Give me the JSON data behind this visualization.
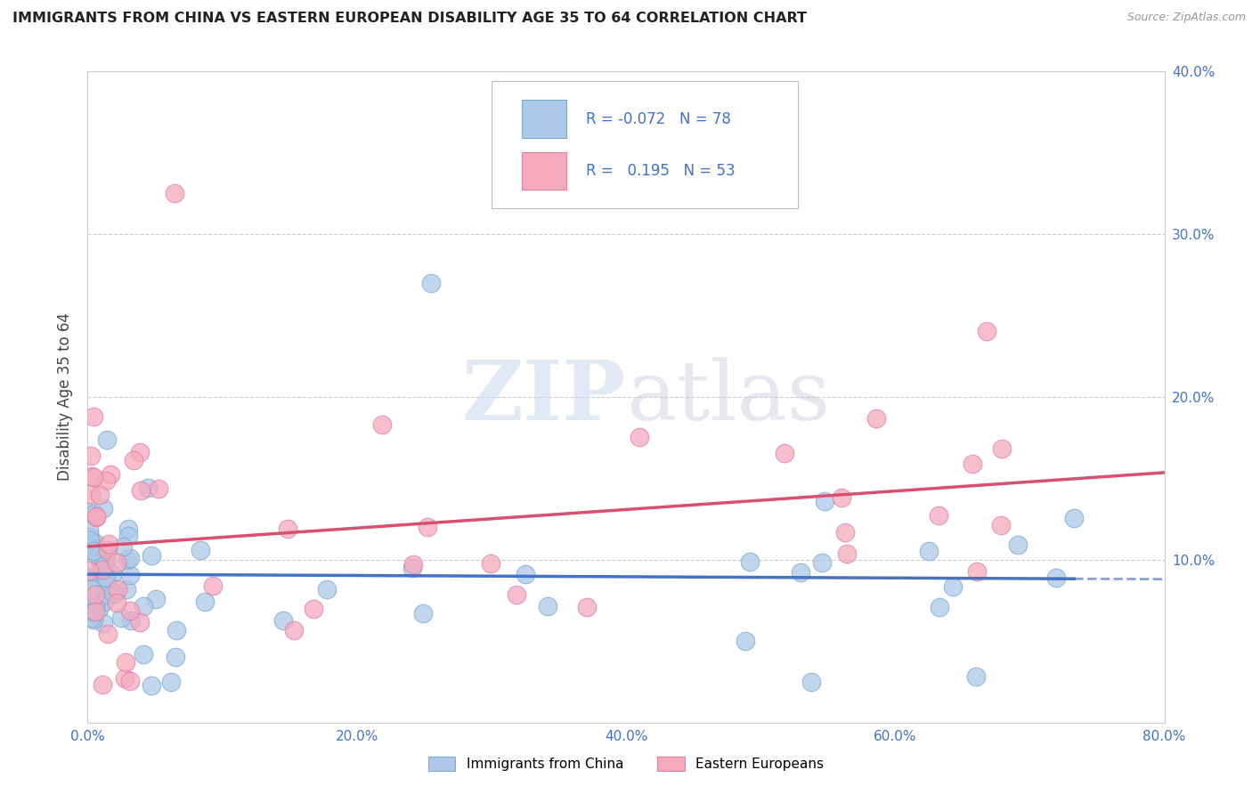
{
  "title": "IMMIGRANTS FROM CHINA VS EASTERN EUROPEAN DISABILITY AGE 35 TO 64 CORRELATION CHART",
  "source": "Source: ZipAtlas.com",
  "ylabel": "Disability Age 35 to 64",
  "legend_label_1": "Immigrants from China",
  "legend_label_2": "Eastern Europeans",
  "R1": -0.072,
  "N1": 78,
  "R2": 0.195,
  "N2": 53,
  "color1": "#adc8e8",
  "color2": "#f5aabe",
  "trend_color1": "#4472c4",
  "trend_color2": "#d94f6e",
  "xlim": [
    0,
    0.8
  ],
  "ylim": [
    0,
    0.4
  ],
  "background_color": "#ffffff",
  "watermark": "ZIPatlas",
  "xticks": [
    0.0,
    0.2,
    0.4,
    0.6,
    0.8
  ],
  "yticks": [
    0.1,
    0.2,
    0.3,
    0.4
  ],
  "title_fontsize": 11.5,
  "axis_fontsize": 11,
  "ylabel_fontsize": 12
}
